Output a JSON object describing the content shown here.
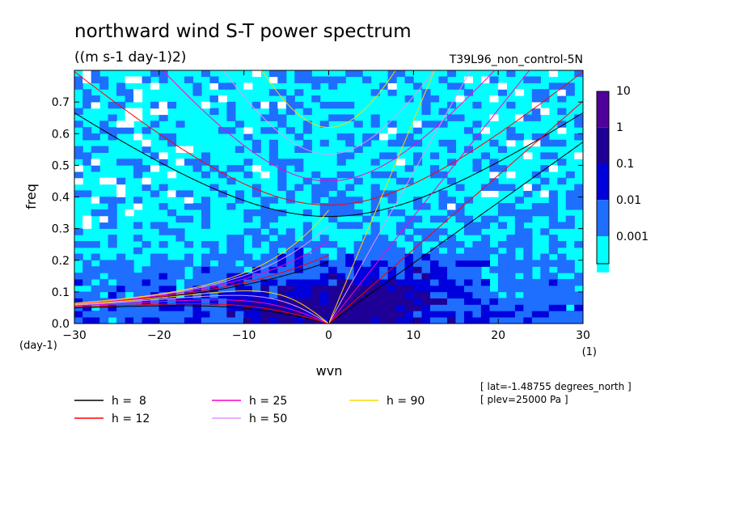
{
  "chart_data": {
    "type": "heatmap",
    "title": "northward wind S-T power spectrum",
    "subtitle": "((m s-1 day-1)2)",
    "run_label": "T39L96_non_control-5N",
    "xlabel": "wvn",
    "ylabel": "freq",
    "x_unit": "(1)",
    "y_unit": "(day-1)",
    "xlim": [
      -30,
      30
    ],
    "ylim": [
      0,
      0.8
    ],
    "x_ticks": [
      "−30",
      "−20",
      "−10",
      "0",
      "10",
      "20",
      "30"
    ],
    "y_ticks": [
      "0.0",
      "0.1",
      "0.2",
      "0.3",
      "0.4",
      "0.5",
      "0.6",
      "0.7"
    ],
    "colorbar": {
      "levels": [
        "0.001",
        "0.01",
        "0.1",
        "1",
        "10"
      ],
      "colors": [
        "#00ffff",
        "#1e6eff",
        "#0000dc",
        "#1e0096",
        "#50009b"
      ]
    },
    "dispersion_curves": [
      {
        "name": "h =  8",
        "h": 8,
        "color": "#000000"
      },
      {
        "name": "h = 12",
        "h": 12,
        "color": "#ff0000"
      },
      {
        "name": "h = 25",
        "h": 25,
        "color": "#ff00c8"
      },
      {
        "name": "h = 50",
        "h": 50,
        "color": "#e696ff"
      },
      {
        "name": "h = 90",
        "h": 90,
        "color": "#ffd700"
      }
    ],
    "notes": [
      "[ lat=-1.48755 degrees_north ]",
      "[ plev=25000 Pa ]"
    ]
  }
}
